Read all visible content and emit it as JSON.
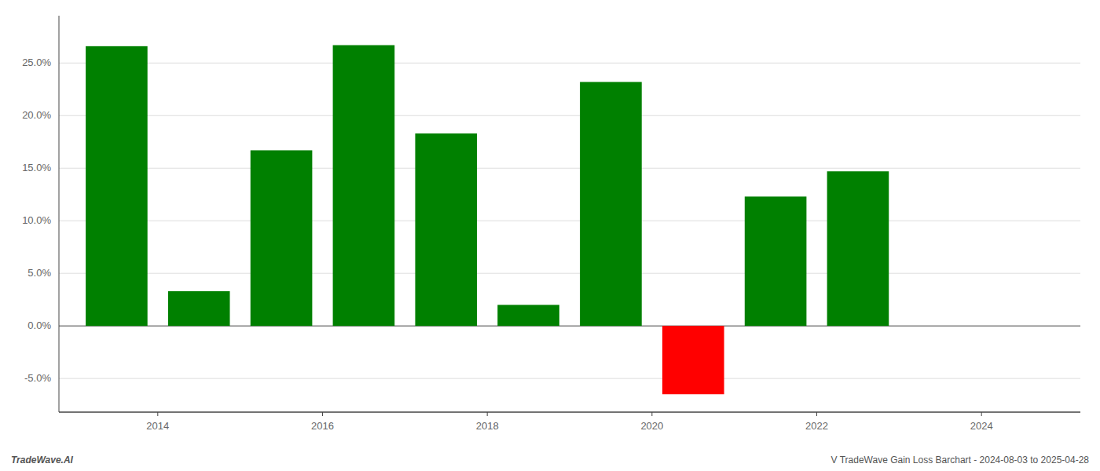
{
  "chart_data": {
    "type": "bar",
    "x": [
      2013.5,
      2014.5,
      2015.5,
      2016.5,
      2017.5,
      2018.5,
      2019.5,
      2020.5,
      2021.5,
      2022.5
    ],
    "values": [
      0.266,
      0.033,
      0.167,
      0.267,
      0.183,
      0.02,
      0.232,
      -0.065,
      0.123,
      0.147
    ],
    "colors": [
      "#008000",
      "#008000",
      "#008000",
      "#008000",
      "#008000",
      "#008000",
      "#008000",
      "#ff0000",
      "#008000",
      "#008000"
    ],
    "xlim": [
      2012.8,
      2025.2
    ],
    "xticks": [
      2014,
      2016,
      2018,
      2020,
      2022,
      2024
    ],
    "ylim": [
      -0.082,
      0.295
    ],
    "yticks": [
      {
        "value": -0.05,
        "label": "-5.0%"
      },
      {
        "value": 0.0,
        "label": "0.0%"
      },
      {
        "value": 0.05,
        "label": "5.0%"
      },
      {
        "value": 0.1,
        "label": "10.0%"
      },
      {
        "value": 0.15,
        "label": "15.0%"
      },
      {
        "value": 0.2,
        "label": "20.0%"
      },
      {
        "value": 0.25,
        "label": "25.0%"
      }
    ],
    "grid": true,
    "annotations": [
      "TradeWave.AI",
      "V TradeWave Gain Loss Barchart - 2024-08-03 to 2025-04-28"
    ]
  }
}
